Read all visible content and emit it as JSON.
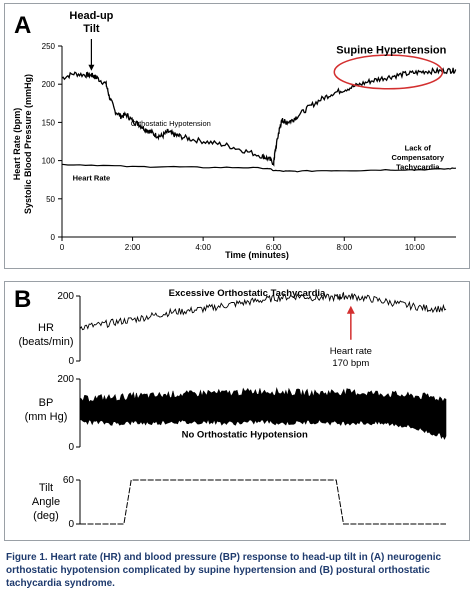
{
  "figure": {
    "caption_label": "Figure 1.",
    "caption_text": "Heart rate (HR) and blood pressure (BP) response to head-up tilt in (A) neurogenic orthostatic hypotension complicated by supine hypertension and (B) postural orthostatic tachycardia syndrome."
  },
  "chart_data": [
    {
      "panel": "A",
      "type": "line",
      "title": "",
      "xlabel": "Time (minutes)",
      "ylabel_lines": [
        "Heart Rate (bpm)",
        "Systolic Blood Pressure (mmHg)"
      ],
      "xlim": [
        0,
        670
      ],
      "ylim": [
        0,
        250
      ],
      "x_ticks": [
        0,
        120,
        240,
        360,
        480,
        600
      ],
      "x_tick_labels": [
        "0",
        "2:00",
        "4:00",
        "6:00",
        "8:00",
        "10:00"
      ],
      "y_ticks": [
        0,
        50,
        100,
        150,
        200,
        250
      ],
      "y_tick_labels": [
        "0",
        "50",
        "100",
        "150",
        "200",
        "250"
      ],
      "series": [
        {
          "label": "Systolic blood pressure",
          "color": "#000000",
          "x": [
            0,
            20,
            40,
            50,
            55,
            60,
            75,
            80,
            90,
            100,
            110,
            120,
            130,
            140,
            150,
            160,
            170,
            180,
            190,
            200,
            220,
            250,
            280,
            310,
            340,
            350,
            360,
            362,
            368,
            372,
            375,
            380,
            390,
            400,
            420,
            440,
            460,
            480,
            500,
            520,
            540,
            560,
            580,
            600,
            620,
            640,
            660,
            670
          ],
          "y": [
            208,
            214,
            212,
            212,
            210,
            208,
            200,
            185,
            165,
            158,
            160,
            152,
            148,
            142,
            138,
            133,
            132,
            138,
            134,
            132,
            128,
            124,
            120,
            113,
            106,
            103,
            97,
            110,
            135,
            148,
            153,
            150,
            152,
            158,
            170,
            180,
            188,
            193,
            198,
            203,
            207,
            210,
            213,
            215,
            217,
            217,
            218,
            218
          ]
        },
        {
          "label": "Heart Rate",
          "color": "#000000",
          "x": [
            0,
            60,
            120,
            180,
            240,
            300,
            350,
            360,
            380,
            400,
            450,
            500,
            550,
            600,
            650,
            670
          ],
          "y": [
            95,
            94,
            92,
            92,
            91,
            91,
            90,
            87,
            86,
            86,
            87,
            87,
            88,
            88,
            89,
            90
          ]
        }
      ],
      "annotations": [
        {
          "text_lines": [
            "Head-up",
            "Tilt"
          ],
          "x": 50,
          "y": 215,
          "bold": true,
          "serif": true,
          "arrow": true
        },
        {
          "text_lines": [
            "Supine Hypertension"
          ],
          "x": 560,
          "y": 240,
          "bold": true,
          "serif": true
        },
        {
          "text_lines": [
            "Orthostatic Hypotension"
          ],
          "x": 185,
          "y": 145
        },
        {
          "text_lines": [
            "Lack of",
            "Compensatory",
            "Tachycardia"
          ],
          "x": 605,
          "y": 113
        },
        {
          "text_lines": [
            "Heart Rate"
          ],
          "x": 50,
          "y": 74
        }
      ],
      "highlight_ellipse": {
        "cx": 555,
        "cy": 216,
        "rx": 92,
        "ry": 22,
        "color": "#d32f2f"
      }
    },
    {
      "panel": "B",
      "subpanel": "HR",
      "type": "line",
      "title": "Excessive Orthostatic Tachycardia",
      "ylabel_lines": [
        "HR",
        "(beats/min)"
      ],
      "xlim": [
        0,
        100
      ],
      "ylim": [
        0,
        200
      ],
      "y_ticks": [
        0,
        200
      ],
      "y_tick_labels": [
        "0",
        "200"
      ],
      "series": [
        {
          "label": "HR",
          "color": "#000000",
          "x": [
            0,
            5,
            10,
            15,
            20,
            25,
            30,
            35,
            40,
            45,
            50,
            55,
            60,
            65,
            70,
            72,
            75,
            80,
            85,
            90,
            95,
            100
          ],
          "y": [
            105,
            110,
            120,
            128,
            140,
            150,
            155,
            162,
            172,
            180,
            188,
            196,
            200,
            194,
            196,
            200,
            198,
            190,
            180,
            170,
            162,
            160
          ]
        }
      ],
      "annotations": [
        {
          "text_lines": [
            "Heart rate",
            "170 bpm"
          ],
          "x": 74,
          "y": 170,
          "arrow": true,
          "arrow_color": "#d32f2f"
        }
      ]
    },
    {
      "panel": "B",
      "subpanel": "BP",
      "type": "area",
      "ylabel_lines": [
        "BP",
        "(mm Hg)"
      ],
      "xlim": [
        0,
        100
      ],
      "ylim": [
        0,
        200
      ],
      "y_ticks": [
        0,
        200
      ],
      "y_tick_labels": [
        "0",
        "200"
      ],
      "series": [
        {
          "label": "BP systolic envelope",
          "color": "#000000",
          "x": [
            0,
            5,
            10,
            15,
            20,
            25,
            30,
            35,
            40,
            45,
            50,
            55,
            60,
            65,
            70,
            75,
            80,
            85,
            90,
            95,
            100
          ],
          "y": [
            140,
            145,
            145,
            150,
            150,
            155,
            155,
            160,
            158,
            162,
            165,
            162,
            160,
            158,
            162,
            160,
            158,
            155,
            150,
            148,
            140
          ]
        },
        {
          "label": "BP diastolic envelope",
          "color": "#000000",
          "x": [
            0,
            5,
            10,
            15,
            20,
            25,
            30,
            35,
            40,
            45,
            50,
            55,
            60,
            65,
            70,
            75,
            80,
            85,
            90,
            95,
            100
          ],
          "y": [
            75,
            72,
            70,
            72,
            70,
            75,
            72,
            75,
            70,
            72,
            75,
            70,
            72,
            75,
            70,
            72,
            70,
            68,
            60,
            45,
            28
          ]
        }
      ],
      "annotations": [
        {
          "text_lines": [
            "No Orthostatic Hypotension"
          ],
          "x": 45,
          "y": 28
        }
      ]
    },
    {
      "panel": "B",
      "subpanel": "Tilt",
      "type": "line",
      "ylabel_lines": [
        "Tilt",
        "Angle",
        "(deg)"
      ],
      "xlim": [
        0,
        100
      ],
      "ylim": [
        0,
        60
      ],
      "y_ticks": [
        0,
        60
      ],
      "y_tick_labels": [
        "0",
        "60"
      ],
      "series": [
        {
          "label": "Tilt angle",
          "color": "#000000",
          "x": [
            0,
            12,
            14,
            70,
            72,
            100
          ],
          "y": [
            0,
            0,
            60,
            60,
            0,
            0
          ]
        }
      ]
    }
  ]
}
